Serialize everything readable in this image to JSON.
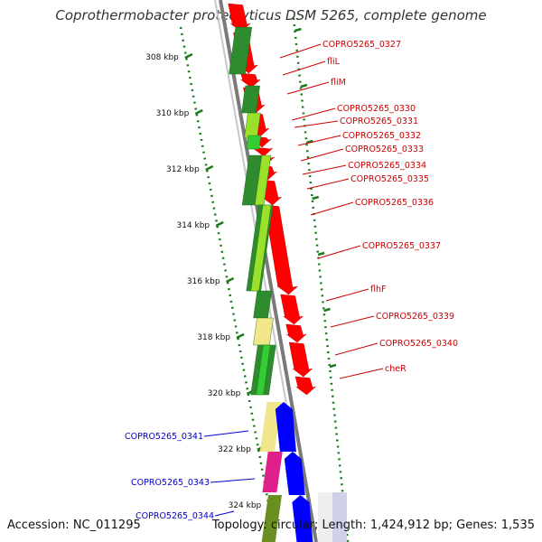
{
  "title": "Coprothermobacter proteolyticus DSM 5265, complete genome",
  "accession": "Accession: NC_011295",
  "summary": "Topology: circular; Length: 1,424,912 bp; Genes: 1,535",
  "colors": {
    "forward_label": "#cc0000",
    "reverse_label": "#0000cc",
    "red_arrow": "#ff0000",
    "blue_arrow": "#0000ff",
    "dark_green": "#2e8b2e",
    "light_green": "#9be02a",
    "bright_green": "#33cc33",
    "khaki": "#f0e68c",
    "magenta": "#e0208a",
    "olive": "#6b8e23",
    "ruler": "#1a7a1a"
  },
  "ruler_ticks": [
    "308 kbp",
    "310 kbp",
    "312 kbp",
    "314 kbp",
    "316 kbp",
    "318 kbp",
    "320 kbp",
    "322 kbp",
    "324 kbp"
  ],
  "forward_labels": [
    "COPRO5265_0327",
    "fliL",
    "fliM",
    "COPRO5265_0330",
    "COPRO5265_0331",
    "COPRO5265_0332",
    "COPRO5265_0333",
    "COPRO5265_0334",
    "COPRO5265_0335",
    "COPRO5265_0336",
    "COPRO5265_0337",
    "flhF",
    "COPRO5265_0339",
    "COPRO5265_0340",
    "cheR"
  ],
  "reverse_labels": [
    "COPRO5265_0341",
    "COPRO5265_0343",
    "COPRO5265_0344"
  ]
}
